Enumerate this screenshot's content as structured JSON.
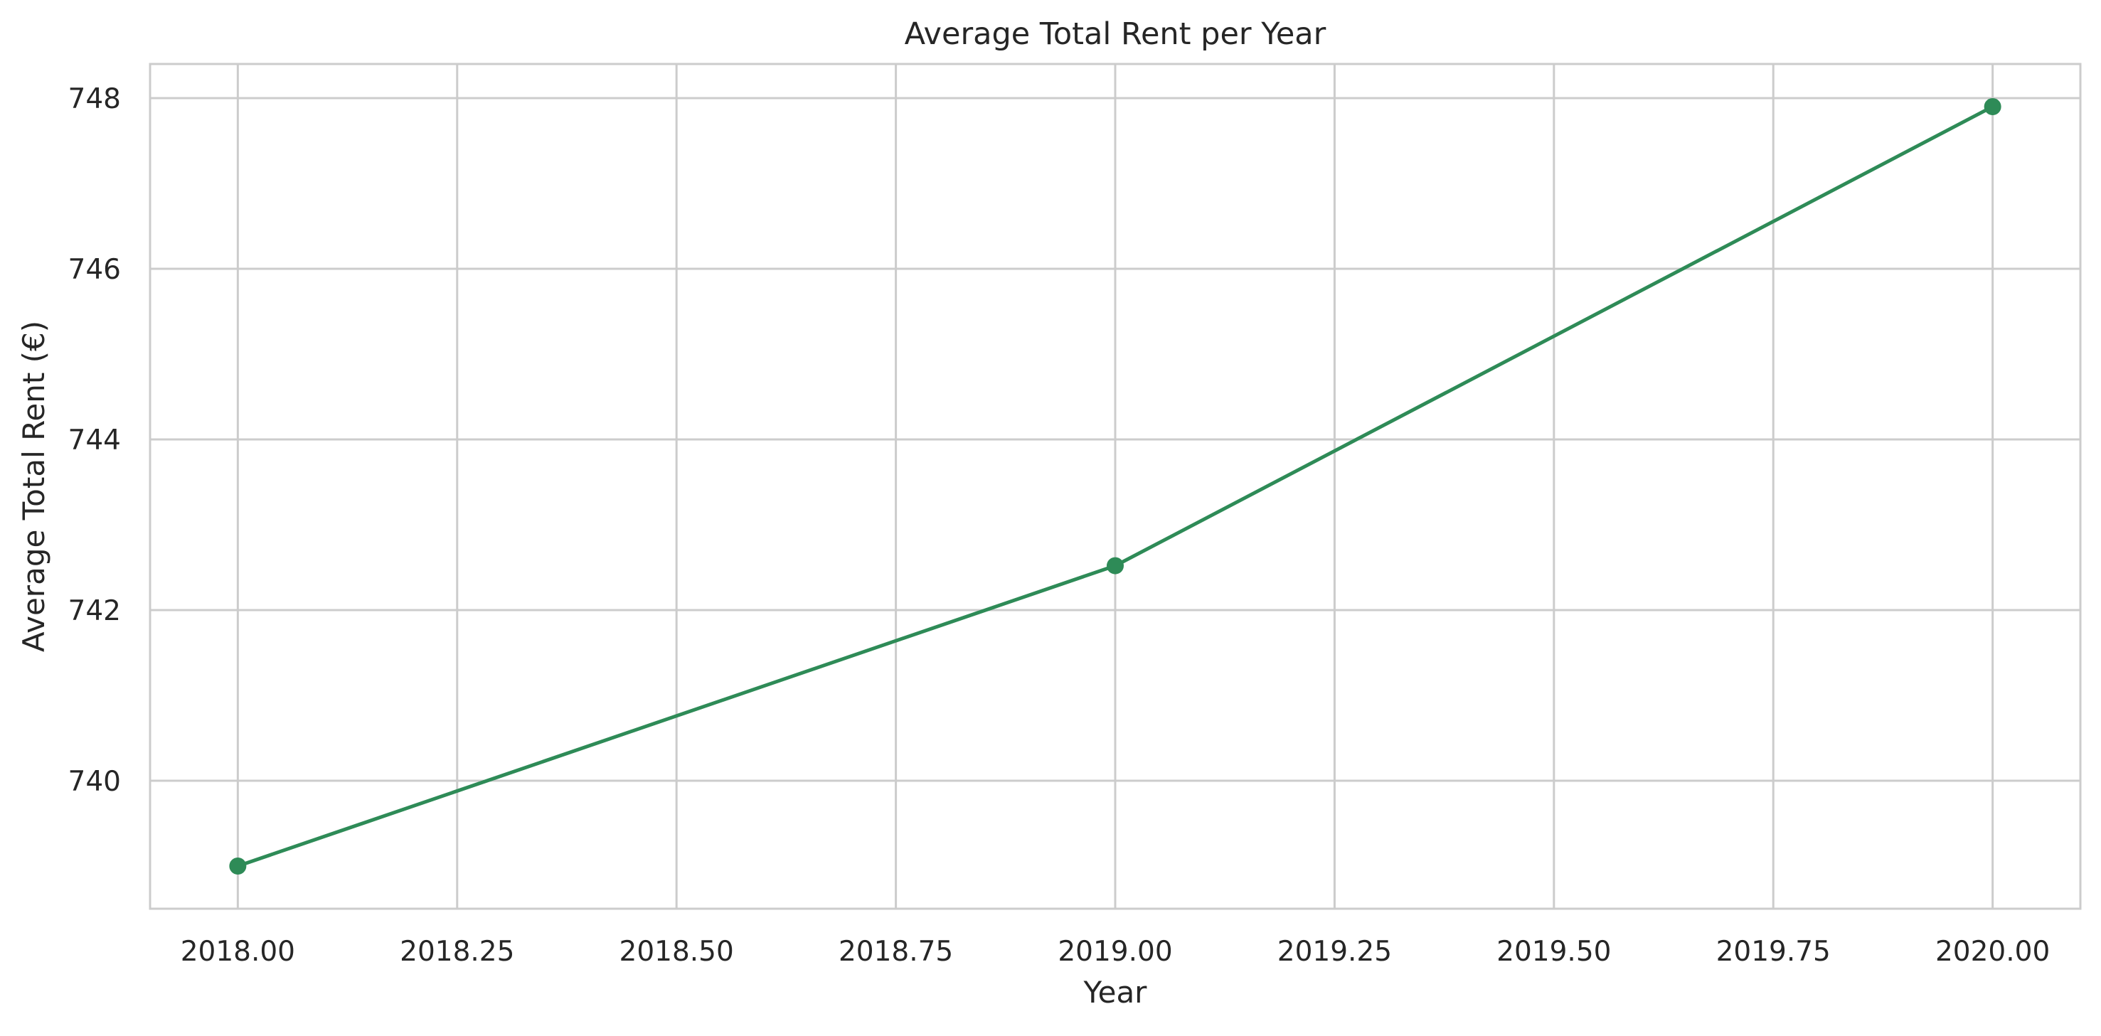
{
  "chart_data": {
    "type": "line",
    "title": "Average Total Rent per Year",
    "xlabel": "Year",
    "ylabel": "Average Total Rent (€)",
    "x": [
      2018,
      2019,
      2020
    ],
    "series": [
      {
        "values": [
          739.0,
          742.52,
          747.9
        ],
        "color": "#2e8b57",
        "marker": "circle"
      }
    ],
    "xlim": [
      2017.9,
      2020.1
    ],
    "ylim": [
      738.5,
      748.4
    ],
    "x_ticks": [
      2018.0,
      2018.25,
      2018.5,
      2018.75,
      2019.0,
      2019.25,
      2019.5,
      2019.75,
      2020.0
    ],
    "x_tick_labels": [
      "2018.00",
      "2018.25",
      "2018.50",
      "2018.75",
      "2019.00",
      "2019.25",
      "2019.50",
      "2019.75",
      "2020.00"
    ],
    "y_ticks": [
      740,
      742,
      744,
      746,
      748
    ],
    "y_tick_labels": [
      "740",
      "742",
      "744",
      "746",
      "748"
    ],
    "grid": true,
    "colors": {
      "grid": "#cccccc",
      "spine": "#cccccc",
      "text": "#262626"
    }
  }
}
